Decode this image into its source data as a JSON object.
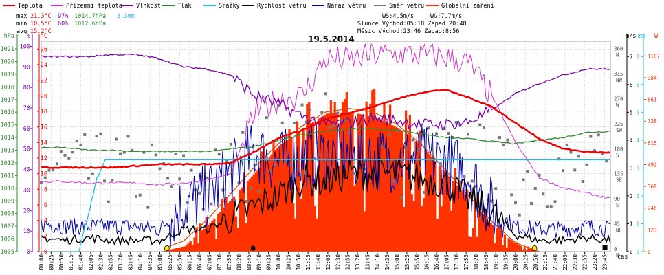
{
  "chart_data": {
    "type": "line",
    "title": "19.5.2014",
    "xlabel": "čas",
    "legend_position": "top",
    "legend": [
      {
        "name": "Teplota",
        "color": "#dd0000"
      },
      {
        "name": "Přízemní teplota",
        "color": "#cc33cc"
      },
      {
        "name": "Vlhkost",
        "color": "#7700aa"
      },
      {
        "name": "Tlak",
        "color": "#338833"
      },
      {
        "name": "Srážky",
        "color": "#22bbdd"
      },
      {
        "name": "Rychlost větru",
        "color": "#000000"
      },
      {
        "name": "Náraz větru",
        "color": "#0000aa"
      },
      {
        "name": "Směr větru",
        "color": "#777777"
      },
      {
        "name": "Globální záření",
        "color": "#ee3300"
      }
    ],
    "stats": {
      "max": {
        "label": "max",
        "temp": "21.3°C",
        "hum": "97%",
        "press": "1014.7hPa",
        "rain": "3.3mm"
      },
      "min": {
        "label": "min",
        "temp": "10.5°C",
        "hum": "60%",
        "press": "1012.6hPa"
      },
      "avg": {
        "label": "avg",
        "temp": "15.2°C"
      }
    },
    "info": {
      "ws": "WS:4.5m/s",
      "wg": "WG:7.7m/s",
      "sun": "Slunce Východ:05:18  Západ:20:48",
      "moon": "Měsíc  Východ:23:46  Západ:8:56"
    },
    "axes": {
      "left_press": {
        "unit": "hPa",
        "color": "#338833",
        "ticks": [
          "1005",
          "1006",
          "1007",
          "1008",
          "1009",
          "1010",
          "1011",
          "1012",
          "1013",
          "1014",
          "1015",
          "1016",
          "1017",
          "1018",
          "1019",
          "1020",
          "1021"
        ]
      },
      "left_hum": {
        "unit": "%",
        "color": "#7700aa",
        "ticks": [
          "0",
          "10",
          "20",
          "30",
          "40",
          "50",
          "60",
          "70",
          "80",
          "90",
          "100"
        ]
      },
      "left_temp": {
        "unit": "°C",
        "color": "#dd0000",
        "ticks": [
          "0",
          "2",
          "4",
          "6",
          "8",
          "10",
          "12",
          "14",
          "16",
          "18",
          "20",
          "22",
          "24",
          "26"
        ]
      },
      "right_dir": {
        "unit": "",
        "color": "#555555",
        "ticks": [
          "0",
          "45",
          "90",
          "135",
          "180",
          "225",
          "270",
          "315",
          "360"
        ],
        "labels": [
          "N",
          "NE",
          "E",
          "SE",
          "S",
          "SW",
          "W",
          "NW",
          "N"
        ]
      },
      "right_wind": {
        "unit": "m/s",
        "color": "#000000",
        "ticks": [
          "0",
          "1",
          "2",
          "3",
          "4",
          "5",
          "6",
          "7"
        ]
      },
      "right_rain": {
        "unit": "mm",
        "color": "#22bbdd",
        "ticks": [
          "0",
          "1",
          "2",
          "3",
          "4",
          "5",
          "6",
          "7"
        ]
      },
      "right_rad": {
        "unit": "W",
        "color": "#ee3300",
        "ticks": [
          "0",
          "123",
          "246",
          "369",
          "492",
          "615",
          "738",
          "861",
          "984",
          "1107"
        ]
      }
    },
    "x_ticks": [
      "00:00",
      "00:25",
      "00:50",
      "01:15",
      "01:40",
      "02:05",
      "02:30",
      "02:55",
      "03:20",
      "03:45",
      "04:10",
      "04:35",
      "05:00",
      "05:25",
      "05:50",
      "06:15",
      "06:40",
      "07:05",
      "07:30",
      "07:55",
      "08:20",
      "08:45",
      "09:10",
      "09:35",
      "10:00",
      "10:25",
      "10:50",
      "11:15",
      "11:40",
      "12:05",
      "12:30",
      "12:55",
      "13:20",
      "13:45",
      "14:10",
      "14:35",
      "15:00",
      "15:25",
      "15:50",
      "16:15",
      "16:40",
      "17:05",
      "17:30",
      "17:55",
      "18:20",
      "18:45",
      "19:10",
      "19:35",
      "20:00",
      "20:25",
      "20:50",
      "21:15",
      "21:40",
      "22:05",
      "22:30",
      "22:55",
      "23:20",
      "23:45"
    ],
    "series": {
      "hours": [
        0,
        1,
        2,
        3,
        4,
        5,
        6,
        7,
        8,
        9,
        10,
        11,
        12,
        13,
        14,
        15,
        16,
        17,
        18,
        19,
        20,
        21,
        22,
        23,
        24
      ],
      "temperature": [
        10.8,
        10.8,
        10.8,
        10.8,
        11.0,
        11.2,
        11.2,
        11.2,
        11.4,
        12.8,
        14.6,
        15.6,
        17.0,
        17.8,
        18.6,
        19.6,
        20.4,
        20.8,
        19.8,
        18.6,
        16.5,
        14.5,
        13.2,
        12.8,
        12.7
      ],
      "ground_temperature": [
        9.0,
        9.0,
        8.8,
        8.8,
        8.8,
        8.6,
        8.8,
        9.2,
        10.0,
        17.8,
        19.5,
        20.0,
        24.8,
        24.6,
        25.2,
        25.4,
        25.2,
        25.0,
        24.2,
        20.0,
        14.0,
        9.5,
        8.2,
        7.5,
        6.8
      ],
      "humidity": [
        95,
        95,
        95,
        96,
        96,
        94,
        90,
        89,
        86,
        76,
        72,
        66,
        62,
        63,
        65,
        64,
        62,
        62,
        63,
        69,
        77,
        82,
        86,
        89,
        89
      ],
      "pressure": [
        1013.2,
        1013.2,
        1013.0,
        1013.0,
        1012.9,
        1012.9,
        1012.9,
        1012.9,
        1013.1,
        1013.3,
        1013.8,
        1014.2,
        1014.5,
        1014.7,
        1014.7,
        1014.6,
        1014.3,
        1014.0,
        1013.9,
        1013.7,
        1013.5,
        1013.8,
        1014.0,
        1014.4,
        1014.5
      ],
      "rain": [
        0,
        0,
        0.5,
        3.3,
        3.3,
        3.3,
        3.3,
        3.3,
        3.3,
        3.3,
        3.3,
        3.3,
        3.3,
        3.3,
        3.3,
        3.3,
        3.3,
        3.3,
        3.3,
        3.3,
        3.3,
        3.3,
        3.3,
        3.3,
        3.3
      ],
      "wind_speed": [
        0.5,
        0.4,
        0.5,
        0.4,
        0.4,
        0.4,
        0.8,
        0.8,
        1.2,
        1.6,
        2.0,
        2.6,
        2.5,
        2.8,
        2.8,
        2.8,
        2.6,
        2.5,
        1.9,
        1.4,
        0.6,
        0.4,
        0.4,
        0.5,
        0.4
      ],
      "wind_gust": [
        1.0,
        0.9,
        0.9,
        0.9,
        0.9,
        0.8,
        1.7,
        2.0,
        2.8,
        3.6,
        3.2,
        3.4,
        3.4,
        3.4,
        3.3,
        3.3,
        3.4,
        3.2,
        2.8,
        1.5,
        0.9,
        0.8,
        0.8,
        0.9,
        0.8
      ],
      "wind_direction": [
        145,
        150,
        140,
        150,
        140,
        130,
        120,
        120,
        140,
        170,
        200,
        220,
        220,
        200,
        180,
        160,
        160,
        170,
        180,
        150,
        130,
        140,
        150,
        140,
        150
      ],
      "radiation": [
        0,
        0,
        0,
        0,
        0,
        0,
        30,
        150,
        300,
        450,
        600,
        700,
        780,
        790,
        760,
        700,
        600,
        450,
        300,
        150,
        40,
        0,
        0,
        0,
        0
      ],
      "clear_sky_radiation": [
        0,
        0,
        0,
        0,
        0,
        10,
        60,
        180,
        330,
        480,
        610,
        710,
        790,
        810,
        790,
        720,
        610,
        470,
        320,
        170,
        50,
        0,
        0,
        0,
        0
      ]
    }
  }
}
